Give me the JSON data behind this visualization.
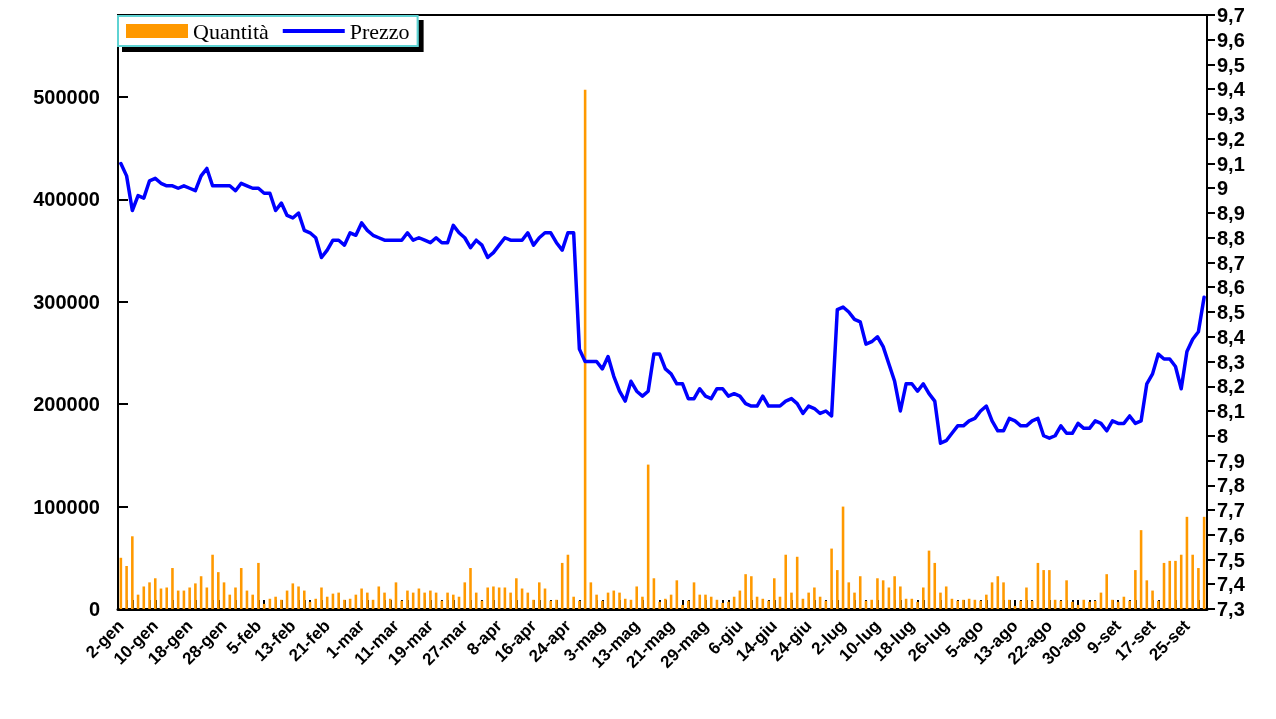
{
  "chart_data": {
    "type": "bar",
    "categories": [
      "2-gen",
      null,
      null,
      null,
      null,
      null,
      "10-gen",
      null,
      null,
      null,
      null,
      null,
      "18-gen",
      null,
      null,
      null,
      null,
      null,
      "28-gen",
      null,
      null,
      null,
      null,
      null,
      "5-feb",
      null,
      null,
      null,
      null,
      null,
      "13-feb",
      null,
      null,
      null,
      null,
      null,
      "21-feb",
      null,
      null,
      null,
      null,
      null,
      "1-mar",
      null,
      null,
      null,
      null,
      null,
      "11-mar",
      null,
      null,
      null,
      null,
      null,
      "19-mar",
      null,
      null,
      null,
      null,
      null,
      "27-mar",
      null,
      null,
      null,
      null,
      null,
      "8-apr",
      null,
      null,
      null,
      null,
      null,
      "16-apr",
      null,
      null,
      null,
      null,
      null,
      "24-apr",
      null,
      null,
      null,
      null,
      null,
      "3-mag",
      null,
      null,
      null,
      null,
      null,
      "13-mag",
      null,
      null,
      null,
      null,
      null,
      "21-mag",
      null,
      null,
      null,
      null,
      null,
      "29-mag",
      null,
      null,
      null,
      null,
      null,
      "6-giu",
      null,
      null,
      null,
      null,
      null,
      "14-giu",
      null,
      null,
      null,
      null,
      null,
      "24-giu",
      null,
      null,
      null,
      null,
      null,
      "2-lug",
      null,
      null,
      null,
      null,
      null,
      "10-lug",
      null,
      null,
      null,
      null,
      null,
      "18-lug",
      null,
      null,
      null,
      null,
      null,
      "26-lug",
      null,
      null,
      null,
      null,
      null,
      "5-ago",
      null,
      null,
      null,
      null,
      null,
      "13-ago",
      null,
      null,
      null,
      null,
      null,
      "22-ago",
      null,
      null,
      null,
      null,
      null,
      "30-ago",
      null,
      null,
      null,
      null,
      null,
      "9-set",
      null,
      null,
      null,
      null,
      null,
      "17-set",
      null,
      null,
      null,
      null,
      null,
      "25-set",
      null,
      null,
      null
    ],
    "series": [
      {
        "name": "Quantità",
        "color": "#ff9900",
        "values": [
          50000,
          42000,
          71000,
          14000,
          22000,
          26000,
          30000,
          20000,
          21000,
          40000,
          18000,
          18000,
          21000,
          25000,
          32000,
          21000,
          53000,
          36000,
          26000,
          14000,
          21000,
          40000,
          18000,
          14000,
          45000,
          5000,
          10000,
          12000,
          9000,
          18000,
          25000,
          22000,
          18000,
          7000,
          10000,
          21000,
          12000,
          15000,
          16000,
          9000,
          10000,
          14000,
          20000,
          16000,
          9000,
          22000,
          16000,
          10000,
          26000,
          8000,
          18000,
          16000,
          20000,
          16000,
          18000,
          16000,
          8000,
          16000,
          14000,
          12000,
          26000,
          40000,
          16000,
          8000,
          21000,
          22000,
          21000,
          21000,
          16000,
          30000,
          20000,
          16000,
          9000,
          26000,
          20000,
          8000,
          9000,
          45000,
          53000,
          12000,
          8000,
          507000,
          26000,
          14000,
          8000,
          16000,
          18000,
          16000,
          10000,
          9000,
          22000,
          12000,
          141000,
          30000,
          7000,
          10000,
          14000,
          28000,
          4000,
          8000,
          26000,
          14000,
          14000,
          12000,
          9000,
          6000,
          7000,
          12000,
          18000,
          34000,
          32000,
          12000,
          10000,
          8000,
          30000,
          12000,
          53000,
          16000,
          51000,
          10000,
          16000,
          21000,
          12000,
          8000,
          59000,
          38000,
          100000,
          26000,
          16000,
          32000,
          8000,
          9000,
          30000,
          28000,
          21000,
          32000,
          22000,
          10000,
          10000,
          7000,
          21000,
          57000,
          45000,
          16000,
          22000,
          10000,
          8000,
          9000,
          10000,
          9000,
          8000,
          14000,
          26000,
          32000,
          26000,
          9000,
          3000,
          8000,
          21000,
          8000,
          45000,
          38000,
          38000,
          9000,
          8000,
          28000,
          7000,
          4000,
          9000,
          7000,
          8000,
          16000,
          34000,
          9000,
          7000,
          12000,
          8000,
          38000,
          77000,
          28000,
          18000,
          8000,
          45000,
          47000,
          47000,
          53000,
          90000,
          53000,
          40000,
          90000
        ]
      },
      {
        "name": "Prezzo",
        "type": "line",
        "axis": "y2",
        "color": "#0000ff",
        "values": [
          9.1,
          9.05,
          8.91,
          8.97,
          8.96,
          9.03,
          9.04,
          9.02,
          9.01,
          9.01,
          9.0,
          9.01,
          9.0,
          8.99,
          9.05,
          9.08,
          9.01,
          9.01,
          9.01,
          9.01,
          8.99,
          9.02,
          9.01,
          9.0,
          9.0,
          8.98,
          8.98,
          8.91,
          8.94,
          8.89,
          8.88,
          8.9,
          8.83,
          8.82,
          8.8,
          8.72,
          8.75,
          8.79,
          8.79,
          8.77,
          8.82,
          8.81,
          8.86,
          8.83,
          8.81,
          8.8,
          8.79,
          8.79,
          8.79,
          8.79,
          8.82,
          8.79,
          8.8,
          8.79,
          8.78,
          8.8,
          8.78,
          8.78,
          8.85,
          8.82,
          8.8,
          8.76,
          8.79,
          8.77,
          8.72,
          8.74,
          8.77,
          8.8,
          8.79,
          8.79,
          8.79,
          8.82,
          8.77,
          8.8,
          8.82,
          8.82,
          8.78,
          8.75,
          8.82,
          8.82,
          8.35,
          8.3,
          8.3,
          8.3,
          8.27,
          8.32,
          8.24,
          8.18,
          8.14,
          8.22,
          8.18,
          8.16,
          8.18,
          8.33,
          8.33,
          8.27,
          8.25,
          8.21,
          8.21,
          8.15,
          8.15,
          8.19,
          8.16,
          8.15,
          8.19,
          8.19,
          8.16,
          8.17,
          8.16,
          8.13,
          8.12,
          8.12,
          8.16,
          8.12,
          8.12,
          8.12,
          8.14,
          8.15,
          8.13,
          8.09,
          8.12,
          8.11,
          8.09,
          8.1,
          8.08,
          8.51,
          8.52,
          8.5,
          8.47,
          8.46,
          8.37,
          8.38,
          8.4,
          8.36,
          8.29,
          8.22,
          8.1,
          8.21,
          8.21,
          8.18,
          8.21,
          8.17,
          8.14,
          7.97,
          7.98,
          8.01,
          8.04,
          8.04,
          8.06,
          8.07,
          8.1,
          8.12,
          8.06,
          8.02,
          8.02,
          8.07,
          8.06,
          8.04,
          8.04,
          8.06,
          8.07,
          8.0,
          7.99,
          8.0,
          8.04,
          8.01,
          8.01,
          8.05,
          8.03,
          8.03,
          8.06,
          8.05,
          8.02,
          8.06,
          8.05,
          8.05,
          8.08,
          8.05,
          8.06,
          8.21,
          8.25,
          8.33,
          8.31,
          8.31,
          8.28,
          8.19,
          8.34,
          8.39,
          8.42,
          8.56
        ]
      }
    ],
    "ylim": [
      0,
      580000
    ],
    "yticks": [
      0,
      100000,
      200000,
      300000,
      400000,
      500000
    ],
    "y2lim": [
      7.3,
      9.7
    ],
    "y2ticks": [
      {
        "value": 7.3,
        "label": "7,3"
      },
      {
        "value": 7.4,
        "label": "7,4"
      },
      {
        "value": 7.5,
        "label": "7,5"
      },
      {
        "value": 7.6,
        "label": "7,6"
      },
      {
        "value": 7.7,
        "label": "7,7"
      },
      {
        "value": 7.8,
        "label": "7,8"
      },
      {
        "value": 7.9,
        "label": "7,9"
      },
      8,
      {
        "value": 8.1,
        "label": "8,1"
      },
      {
        "value": 8.2,
        "label": "8,2"
      },
      {
        "value": 8.3,
        "label": "8,3"
      },
      {
        "value": 8.4,
        "label": "8,4"
      },
      {
        "value": 8.5,
        "label": "8,5"
      },
      {
        "value": 8.6,
        "label": "8,6"
      },
      {
        "value": 8.7,
        "label": "8,7"
      },
      {
        "value": 8.8,
        "label": "8,8"
      },
      {
        "value": 8.9,
        "label": "8,9"
      },
      9,
      {
        "value": 9.1,
        "label": "9,1"
      },
      {
        "value": 9.2,
        "label": "9,2"
      },
      {
        "value": 9.3,
        "label": "9,3"
      },
      {
        "value": 9.4,
        "label": "9,4"
      },
      {
        "value": 9.5,
        "label": "9,5"
      },
      {
        "value": 9.6,
        "label": "9,6"
      },
      {
        "value": 9.7,
        "label": "9,7"
      }
    ],
    "legend": "top left",
    "marker": "none"
  }
}
